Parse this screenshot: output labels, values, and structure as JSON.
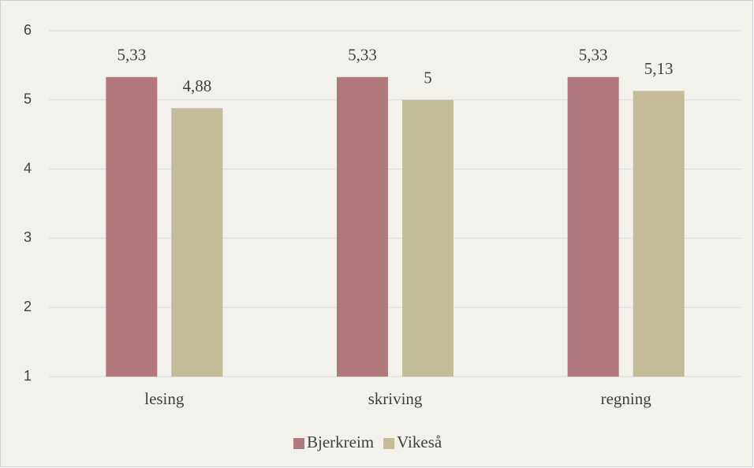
{
  "chart_data": {
    "type": "bar",
    "categories": [
      "lesing",
      "skriving",
      "regning"
    ],
    "series": [
      {
        "name": "Bjerkreim",
        "color": "#b0787c",
        "values": [
          5.33,
          5.33,
          5.33
        ],
        "value_labels": [
          "5,33",
          "5,33",
          "5,33"
        ]
      },
      {
        "name": "Vikeså",
        "color": "#c4bb98",
        "values": [
          4.88,
          5,
          5.13
        ],
        "value_labels": [
          "4,88",
          "5",
          "5,13"
        ]
      }
    ],
    "ylim": [
      1,
      6
    ],
    "yticks": [
      1,
      2,
      3,
      4,
      5,
      6
    ],
    "grid": true,
    "legend": "bottom"
  }
}
